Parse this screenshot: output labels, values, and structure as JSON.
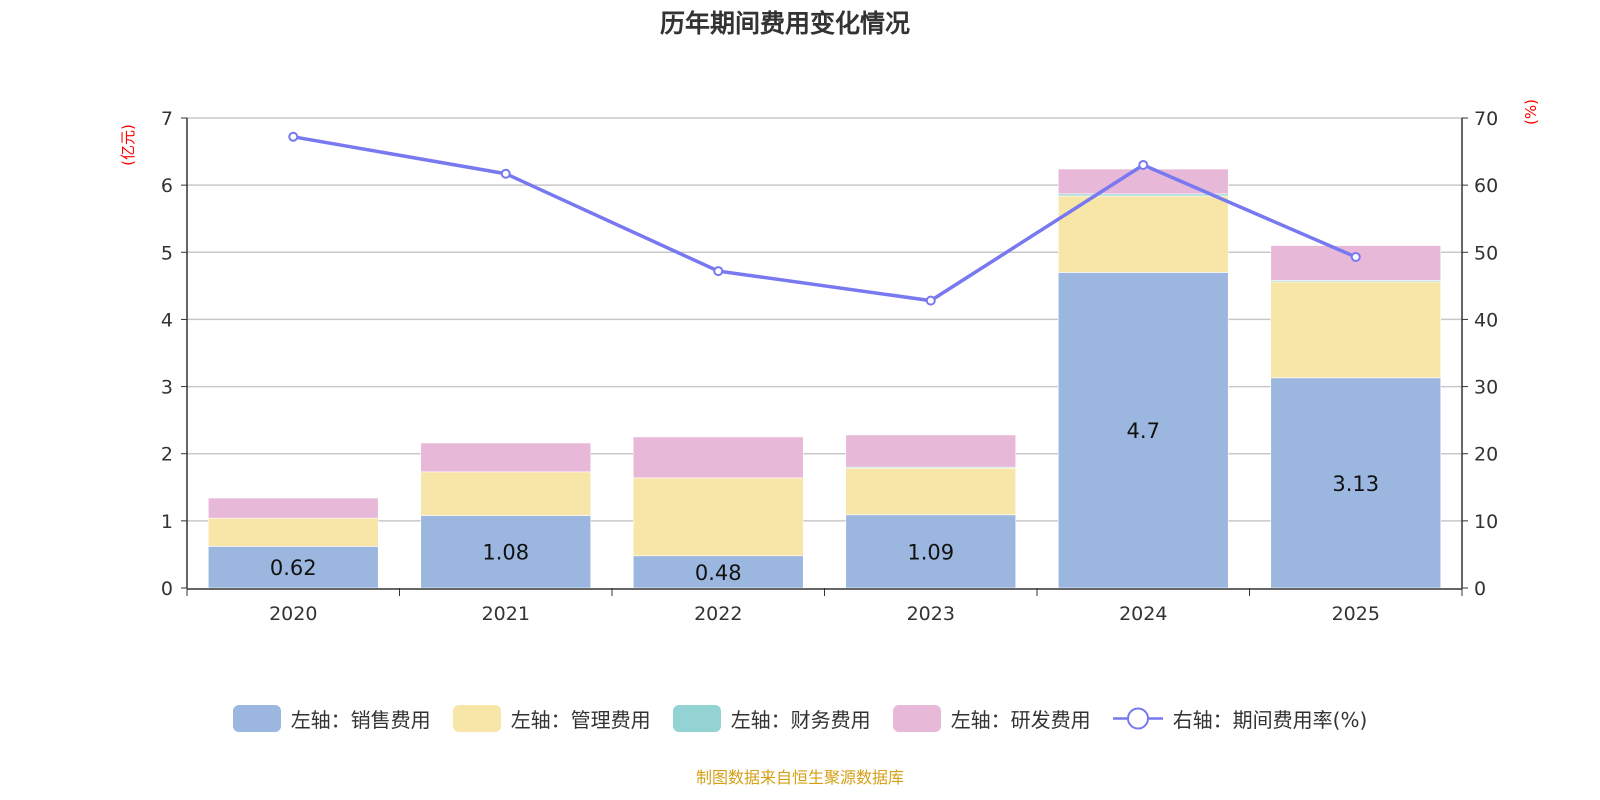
{
  "chart_data": {
    "type": "bar",
    "stacked": true,
    "title": "历年期间费用变化情况",
    "categories": [
      "2020",
      "2021",
      "2022",
      "2023",
      "2024",
      "2025"
    ],
    "left_axis": {
      "unit": "(亿元)",
      "ylim": [
        0,
        7
      ],
      "ticks": [
        "0",
        "1",
        "2",
        "3",
        "4",
        "5",
        "6",
        "7"
      ]
    },
    "right_axis": {
      "unit": "(%)",
      "ylim": [
        0,
        70
      ],
      "ticks": [
        "0",
        "10",
        "20",
        "30",
        "40",
        "50",
        "60",
        "70"
      ]
    },
    "series": [
      {
        "name": "左轴：销售费用",
        "axis": "left",
        "color": "#9bb7e0",
        "values": [
          0.62,
          1.08,
          0.48,
          1.09,
          4.7,
          3.13
        ],
        "labels": [
          "0.62",
          "1.08",
          "0.48",
          "1.09",
          "4.7",
          "3.13"
        ]
      },
      {
        "name": "左轴：管理费用",
        "axis": "left",
        "color": "#f8e6a8",
        "values": [
          0.42,
          0.65,
          1.16,
          0.7,
          1.14,
          1.43
        ]
      },
      {
        "name": "左轴：财务费用",
        "axis": "left",
        "color": "#93d3d4",
        "values": [
          0.0,
          0.0,
          0.0,
          0.01,
          0.03,
          0.02
        ]
      },
      {
        "name": "左轴：研发费用",
        "axis": "left",
        "color": "#e7b8d8",
        "values": [
          0.3,
          0.43,
          0.61,
          0.48,
          0.37,
          0.52
        ]
      },
      {
        "name": "右轴：期间费用率(%)",
        "axis": "right",
        "type": "line",
        "color": "#7878f0",
        "values": [
          67.2,
          61.7,
          47.2,
          42.8,
          63.0,
          49.3
        ]
      }
    ],
    "grid": true,
    "legend_position": "bottom"
  },
  "source": {
    "text": "制图数据来自恒生聚源数据库",
    "color": "#d4a017"
  }
}
